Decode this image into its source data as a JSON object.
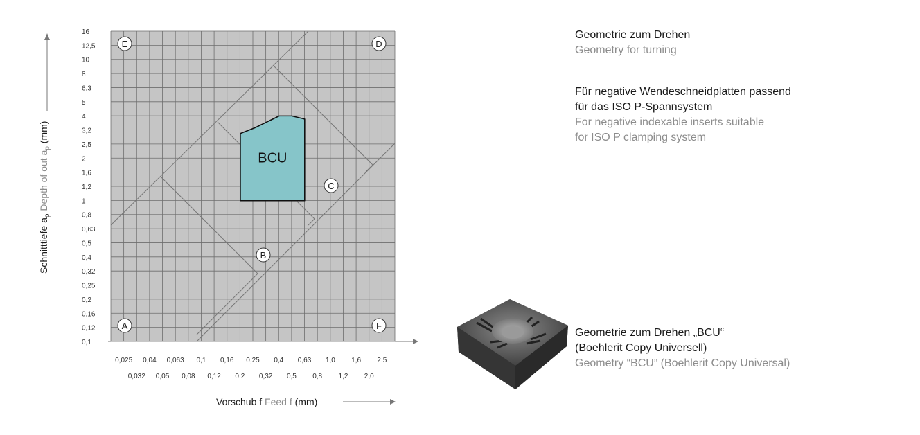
{
  "chart_data": {
    "type": "area",
    "x_axis": {
      "scale": "log",
      "range": [
        0.02,
        2.5
      ],
      "tick_labels_row1": [
        "0,025",
        "0,04",
        "0,063",
        "0,1",
        "0,16",
        "0,25",
        "0,4",
        "0,63",
        "1,0",
        "1,6",
        "2,5"
      ],
      "tick_labels_row2": [
        "0,032",
        "0,05",
        "0,08",
        "0,12",
        "0,2",
        "0,32",
        "0,5",
        "0,8",
        "1,2",
        "2,0"
      ],
      "label_de": "Vorschub f",
      "label_en": "Feed f",
      "label_unit": "(mm)"
    },
    "y_axis": {
      "scale": "log",
      "range": [
        0.1,
        16
      ],
      "tick_labels": [
        "0,1",
        "0,12",
        "0,16",
        "0,2",
        "0,25",
        "0,32",
        "0,4",
        "0,5",
        "0,63",
        "0,8",
        "1",
        "1,2",
        "1,6",
        "2",
        "2,5",
        "3,2",
        "4",
        "5",
        "6,3",
        "8",
        "10",
        "12,5",
        "16"
      ],
      "label_de": "Schnitttiefe a",
      "label_sub": "p",
      "label_en": "Depth of out a",
      "label_unit": "(mm)"
    },
    "region": {
      "name": "BCU",
      "color": "#86c5c9",
      "outline": [
        [
          0.2,
          1.0
        ],
        [
          0.63,
          1.0
        ],
        [
          0.63,
          3.8
        ],
        [
          0.5,
          4.0
        ],
        [
          0.4,
          4.0
        ],
        [
          0.26,
          3.3
        ],
        [
          0.2,
          3.0
        ]
      ]
    },
    "zones": [
      "A",
      "B",
      "C",
      "D",
      "E",
      "F"
    ],
    "grid": true
  },
  "text": {
    "g1_de": "Geometrie zum Drehen",
    "g1_en": "Geometry for turning",
    "g2_de_1": "Für negative Wendeschneidplatten passend",
    "g2_de_2": "für das ISO P-Spannsystem",
    "g2_en_1": "For negative indexable inserts suitable",
    "g2_en_2": "for ISO P clamping system",
    "g3_de_1": "Geometrie zum Drehen „BCU“",
    "g3_de_2": "(Boehlerit Copy Universell)",
    "g3_en": "Geometry “BCU” (Boehlerit Copy Universal)"
  },
  "colors": {
    "plot_bg": "#c5c5c5",
    "grid": "#6e6e6e",
    "region": "#86c5c9",
    "axis": "#777777"
  },
  "image": {
    "name": "indexable-insert-photo"
  }
}
